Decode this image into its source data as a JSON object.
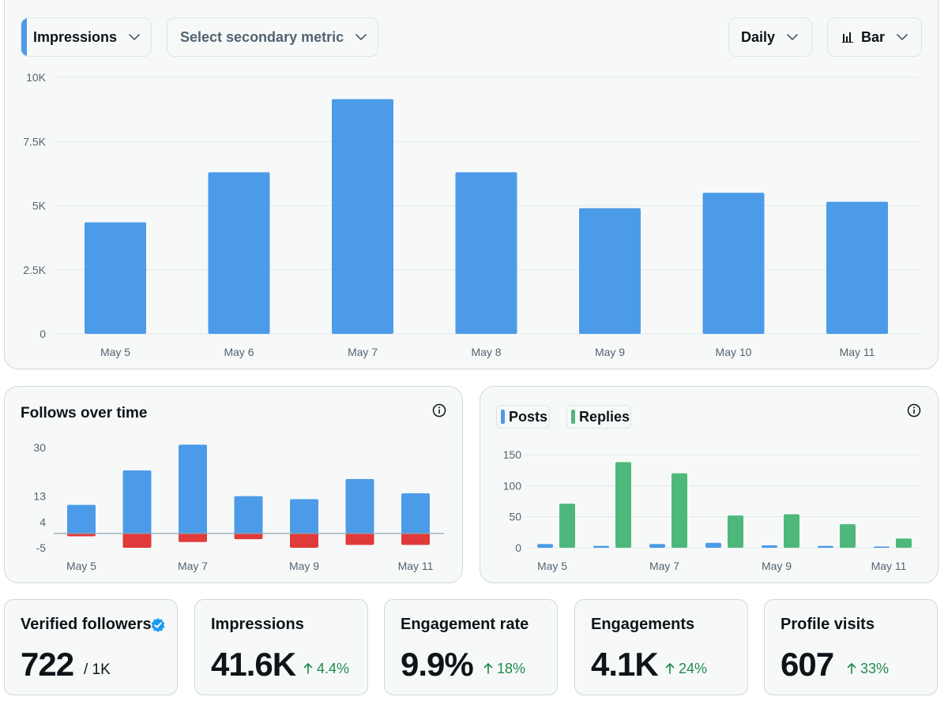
{
  "controls": {
    "primary_metric": "Impressions",
    "secondary_metric_placeholder": "Select secondary metric",
    "range": "Daily",
    "chart_type": "Bar"
  },
  "colors": {
    "blue": "#4c9be8",
    "green": "#4db87a",
    "red": "#e03a3a",
    "delta_green": "#1e8b4c",
    "verified_blue": "#1d9bf0"
  },
  "chart_data": [
    {
      "type": "bar",
      "title": "",
      "categories": [
        "May 5",
        "May 6",
        "May 7",
        "May 8",
        "May 9",
        "May 10",
        "May 11"
      ],
      "values": [
        4350,
        6300,
        9150,
        6300,
        4900,
        5500,
        5150
      ],
      "yticks": [
        0,
        2500,
        5000,
        7500,
        10000
      ],
      "ytick_labels": [
        "0",
        "2.5K",
        "5K",
        "7.5K",
        "10K"
      ],
      "ylim": [
        0,
        10000
      ],
      "grid": true,
      "color": "#4c9be8"
    },
    {
      "type": "bar",
      "title": "Follows over time",
      "categories": [
        "May 5",
        "May 6",
        "May 7",
        "May 8",
        "May 9",
        "May 10",
        "May 11"
      ],
      "x_labels_shown": [
        "May 5",
        "May 7",
        "May 9",
        "May 11"
      ],
      "series": [
        {
          "values": [
            10,
            22,
            31,
            13,
            12,
            19,
            14
          ],
          "color": "#4c9be8"
        },
        {
          "values": [
            -1,
            -5,
            -3,
            -2,
            -5,
            -4,
            -4
          ],
          "color": "#e03a3a"
        }
      ],
      "yticks": [
        -5,
        4,
        13,
        30
      ],
      "ytick_labels": [
        "-5",
        "4",
        "13",
        "30"
      ],
      "ylim": [
        -5,
        30
      ],
      "grid": false
    },
    {
      "type": "bar",
      "title": "",
      "categories": [
        "May 5",
        "May 6",
        "May 7",
        "May 8",
        "May 9",
        "May 10",
        "May 11"
      ],
      "x_labels_shown": [
        "May 5",
        "May 7",
        "May 9",
        "May 11"
      ],
      "series": [
        {
          "name": "Posts",
          "values": [
            6,
            3,
            6,
            8,
            4,
            3,
            2
          ],
          "color": "#4c9be8"
        },
        {
          "name": "Replies",
          "values": [
            71,
            138,
            120,
            52,
            54,
            38,
            15
          ],
          "color": "#4db87a"
        }
      ],
      "yticks": [
        0,
        50,
        100,
        150
      ],
      "ytick_labels": [
        "0",
        "50",
        "100",
        "150"
      ],
      "ylim": [
        0,
        150
      ],
      "grid": true,
      "legend": "top-left"
    }
  ],
  "stats": [
    {
      "title": "Verified followers",
      "value": "722",
      "suffix": "/ 1K",
      "delta": "",
      "verified_badge": true
    },
    {
      "title": "Impressions",
      "value": "41.6K",
      "suffix": "",
      "delta": "4.4%"
    },
    {
      "title": "Engagement rate",
      "value": "9.9%",
      "suffix": "",
      "delta": "18%"
    },
    {
      "title": "Engagements",
      "value": "4.1K",
      "suffix": "",
      "delta": "24%"
    },
    {
      "title": "Profile visits",
      "value": "607",
      "suffix": "",
      "delta": "33%"
    }
  ]
}
